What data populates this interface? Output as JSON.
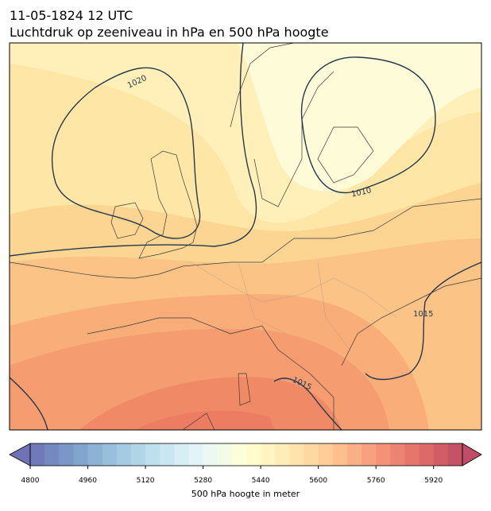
{
  "header": {
    "date": "11-05-1824 12 UTC",
    "title": "Luchtdruk op zeeniveau in hPa en 500 hPa hoogte"
  },
  "map": {
    "isobar_labels": [
      "1020",
      "1010",
      "1015",
      "1015"
    ]
  },
  "colorbar": {
    "label": "500 hPa hoogte in meter",
    "lim": [
      4800,
      6000
    ],
    "step": 40,
    "ticks": [
      4800,
      4960,
      5120,
      5280,
      5440,
      5600,
      5760,
      5920
    ]
  }
}
